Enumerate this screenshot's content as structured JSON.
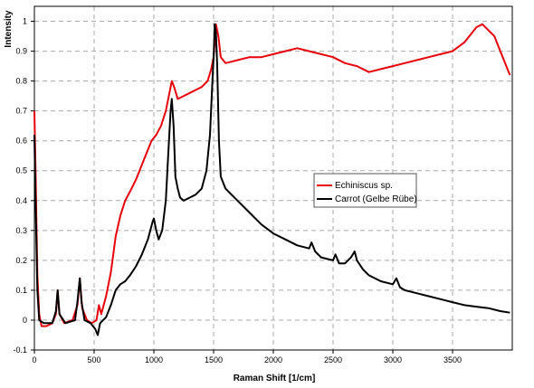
{
  "chart_data": {
    "type": "line",
    "xlabel": "Raman Shift [1/cm]",
    "ylabel": "Intensity",
    "xlim": [
      0,
      4000
    ],
    "ylim": [
      -0.1,
      1.05
    ],
    "x_ticks": [
      0,
      500,
      1000,
      1500,
      2000,
      2500,
      3000,
      3500
    ],
    "y_ticks": [
      -0.1,
      0,
      0.1,
      0.2,
      0.3,
      0.4,
      0.5,
      0.6,
      0.7,
      0.8,
      0.9,
      1
    ],
    "x_tick_labels": [
      "0",
      "500",
      "1000",
      "1500",
      "2000",
      "2500",
      "3000",
      "3500"
    ],
    "y_tick_labels": [
      "-0.1",
      "0",
      "0.1",
      "0.2",
      "0.3",
      "0.4",
      "0.5",
      "0.6",
      "0.7",
      "0.8",
      "0.9",
      "1"
    ],
    "grid": true,
    "legend_position": "center-right",
    "series": [
      {
        "name": "Echiniscus sp.",
        "color": "#e8000b",
        "points": [
          [
            0,
            0.7
          ],
          [
            10,
            0.5
          ],
          [
            25,
            0.15
          ],
          [
            40,
            0.02
          ],
          [
            60,
            -0.02
          ],
          [
            100,
            -0.02
          ],
          [
            150,
            -0.01
          ],
          [
            180,
            0.02
          ],
          [
            195,
            0.1
          ],
          [
            210,
            0.02
          ],
          [
            250,
            -0.01
          ],
          [
            320,
            0.0
          ],
          [
            360,
            0.05
          ],
          [
            380,
            0.14
          ],
          [
            400,
            0.04
          ],
          [
            440,
            0.0
          ],
          [
            480,
            -0.01
          ],
          [
            520,
            0.0
          ],
          [
            540,
            0.05
          ],
          [
            560,
            0.02
          ],
          [
            600,
            0.08
          ],
          [
            640,
            0.16
          ],
          [
            680,
            0.28
          ],
          [
            720,
            0.35
          ],
          [
            760,
            0.4
          ],
          [
            800,
            0.43
          ],
          [
            850,
            0.47
          ],
          [
            900,
            0.52
          ],
          [
            940,
            0.56
          ],
          [
            980,
            0.6
          ],
          [
            1020,
            0.62
          ],
          [
            1060,
            0.65
          ],
          [
            1100,
            0.7
          ],
          [
            1130,
            0.76
          ],
          [
            1150,
            0.8
          ],
          [
            1170,
            0.78
          ],
          [
            1200,
            0.74
          ],
          [
            1250,
            0.75
          ],
          [
            1300,
            0.76
          ],
          [
            1350,
            0.77
          ],
          [
            1400,
            0.78
          ],
          [
            1450,
            0.8
          ],
          [
            1480,
            0.84
          ],
          [
            1500,
            0.88
          ],
          [
            1520,
            0.99
          ],
          [
            1540,
            0.95
          ],
          [
            1560,
            0.88
          ],
          [
            1600,
            0.86
          ],
          [
            1700,
            0.87
          ],
          [
            1800,
            0.88
          ],
          [
            1900,
            0.88
          ],
          [
            2000,
            0.89
          ],
          [
            2100,
            0.9
          ],
          [
            2200,
            0.91
          ],
          [
            2300,
            0.9
          ],
          [
            2400,
            0.89
          ],
          [
            2500,
            0.88
          ],
          [
            2600,
            0.86
          ],
          [
            2700,
            0.85
          ],
          [
            2800,
            0.83
          ],
          [
            2900,
            0.84
          ],
          [
            3000,
            0.85
          ],
          [
            3100,
            0.86
          ],
          [
            3200,
            0.87
          ],
          [
            3300,
            0.88
          ],
          [
            3400,
            0.89
          ],
          [
            3500,
            0.9
          ],
          [
            3600,
            0.93
          ],
          [
            3700,
            0.98
          ],
          [
            3750,
            0.99
          ],
          [
            3800,
            0.97
          ],
          [
            3850,
            0.95
          ],
          [
            3900,
            0.9
          ],
          [
            3950,
            0.85
          ],
          [
            3980,
            0.82
          ]
        ]
      },
      {
        "name": "Carrot (Gelbe Rübe)",
        "color": "#000000",
        "points": [
          [
            0,
            0.62
          ],
          [
            10,
            0.4
          ],
          [
            25,
            0.1
          ],
          [
            40,
            0.0
          ],
          [
            80,
            -0.01
          ],
          [
            150,
            -0.01
          ],
          [
            180,
            0.03
          ],
          [
            195,
            0.1
          ],
          [
            210,
            0.02
          ],
          [
            260,
            -0.01
          ],
          [
            340,
            0.0
          ],
          [
            360,
            0.06
          ],
          [
            380,
            0.14
          ],
          [
            395,
            0.06
          ],
          [
            420,
            0.0
          ],
          [
            470,
            -0.01
          ],
          [
            510,
            -0.03
          ],
          [
            530,
            -0.05
          ],
          [
            550,
            -0.01
          ],
          [
            600,
            0.01
          ],
          [
            640,
            0.05
          ],
          [
            680,
            0.1
          ],
          [
            720,
            0.12
          ],
          [
            760,
            0.13
          ],
          [
            800,
            0.15
          ],
          [
            850,
            0.18
          ],
          [
            900,
            0.22
          ],
          [
            950,
            0.27
          ],
          [
            990,
            0.33
          ],
          [
            1000,
            0.34
          ],
          [
            1020,
            0.3
          ],
          [
            1040,
            0.27
          ],
          [
            1070,
            0.3
          ],
          [
            1100,
            0.4
          ],
          [
            1120,
            0.55
          ],
          [
            1140,
            0.7
          ],
          [
            1150,
            0.74
          ],
          [
            1165,
            0.65
          ],
          [
            1180,
            0.48
          ],
          [
            1200,
            0.44
          ],
          [
            1220,
            0.41
          ],
          [
            1250,
            0.4
          ],
          [
            1300,
            0.41
          ],
          [
            1350,
            0.42
          ],
          [
            1400,
            0.44
          ],
          [
            1440,
            0.5
          ],
          [
            1470,
            0.62
          ],
          [
            1490,
            0.8
          ],
          [
            1500,
            0.88
          ],
          [
            1510,
            0.99
          ],
          [
            1520,
            0.96
          ],
          [
            1530,
            0.85
          ],
          [
            1545,
            0.6
          ],
          [
            1560,
            0.48
          ],
          [
            1600,
            0.44
          ],
          [
            1700,
            0.4
          ],
          [
            1800,
            0.36
          ],
          [
            1900,
            0.32
          ],
          [
            2000,
            0.29
          ],
          [
            2100,
            0.27
          ],
          [
            2200,
            0.25
          ],
          [
            2300,
            0.24
          ],
          [
            2320,
            0.26
          ],
          [
            2350,
            0.23
          ],
          [
            2400,
            0.21
          ],
          [
            2500,
            0.2
          ],
          [
            2520,
            0.22
          ],
          [
            2550,
            0.19
          ],
          [
            2600,
            0.19
          ],
          [
            2650,
            0.21
          ],
          [
            2680,
            0.23
          ],
          [
            2700,
            0.2
          ],
          [
            2750,
            0.17
          ],
          [
            2800,
            0.15
          ],
          [
            2900,
            0.13
          ],
          [
            3000,
            0.12
          ],
          [
            3030,
            0.14
          ],
          [
            3060,
            0.11
          ],
          [
            3100,
            0.1
          ],
          [
            3200,
            0.09
          ],
          [
            3300,
            0.08
          ],
          [
            3400,
            0.07
          ],
          [
            3500,
            0.06
          ],
          [
            3600,
            0.05
          ],
          [
            3700,
            0.045
          ],
          [
            3800,
            0.04
          ],
          [
            3900,
            0.03
          ],
          [
            3980,
            0.025
          ]
        ]
      }
    ]
  }
}
